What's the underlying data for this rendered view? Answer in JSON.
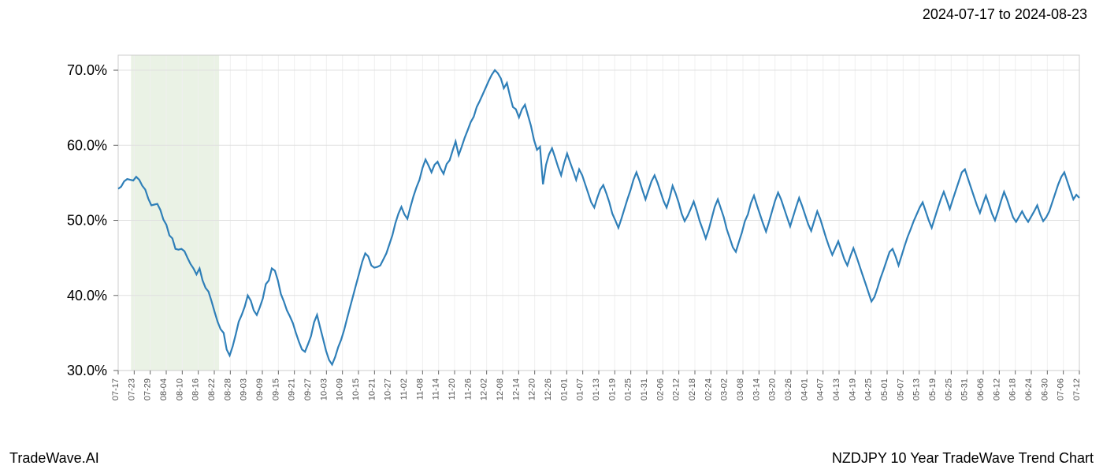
{
  "header": {
    "date_range": "2024-07-17 to 2024-08-23"
  },
  "footer": {
    "brand": "TradeWave.AI",
    "chart_title": "NZDJPY 10 Year TradeWave Trend Chart"
  },
  "chart": {
    "type": "line",
    "background_color": "#ffffff",
    "grid_color": "#e0e0e0",
    "grid_color_minor": "#f0f0f0",
    "line_color": "#2f7fb8",
    "line_width": 2.2,
    "highlight_color": "#d8e8d0",
    "highlight_opacity": 0.55,
    "axis_text_color": "#000000",
    "tick_text_color": "#555555",
    "axis_fontsize": 18,
    "tick_fontsize": 11,
    "ylim": [
      30,
      72
    ],
    "yticks": [
      30,
      40,
      50,
      60,
      70
    ],
    "ytick_labels": [
      "30.0%",
      "40.0%",
      "50.0%",
      "60.0%",
      "70.0%"
    ],
    "highlight_x_range": [
      2,
      11
    ],
    "x_ticks": [
      "07-17",
      "07-23",
      "07-29",
      "08-04",
      "08-10",
      "08-16",
      "08-22",
      "08-28",
      "09-03",
      "09-09",
      "09-15",
      "09-21",
      "09-27",
      "10-03",
      "10-09",
      "10-15",
      "10-21",
      "10-27",
      "11-02",
      "11-08",
      "11-14",
      "11-20",
      "11-26",
      "12-02",
      "12-08",
      "12-14",
      "12-20",
      "12-26",
      "01-01",
      "01-07",
      "01-13",
      "01-19",
      "01-25",
      "01-31",
      "02-06",
      "02-12",
      "02-18",
      "02-24",
      "03-02",
      "03-08",
      "03-14",
      "03-20",
      "03-26",
      "04-01",
      "04-07",
      "04-13",
      "04-19",
      "04-25",
      "05-01",
      "05-07",
      "05-13",
      "05-19",
      "05-25",
      "05-31",
      "06-06",
      "06-12",
      "06-18",
      "06-24",
      "06-30",
      "07-06",
      "07-12"
    ],
    "series": [
      54.2,
      54.5,
      55.2,
      55.5,
      55.4,
      55.3,
      55.8,
      55.4,
      54.6,
      54.1,
      52.9,
      52.0,
      52.1,
      52.2,
      51.4,
      50.1,
      49.4,
      48.0,
      47.6,
      46.2,
      46.1,
      46.2,
      45.9,
      45.0,
      44.2,
      43.6,
      42.8,
      43.6,
      42.0,
      41.0,
      40.5,
      39.2,
      37.8,
      36.5,
      35.5,
      35.0,
      32.8,
      32.0,
      33.2,
      34.8,
      36.5,
      37.4,
      38.5,
      40.0,
      39.3,
      38.0,
      37.4,
      38.4,
      39.6,
      41.5,
      42.0,
      43.6,
      43.3,
      42.0,
      40.2,
      39.2,
      38.0,
      37.2,
      36.3,
      35.0,
      33.8,
      32.8,
      32.5,
      33.5,
      34.6,
      36.4,
      37.4,
      35.8,
      34.2,
      32.6,
      31.4,
      30.8,
      31.8,
      33.1,
      34.1,
      35.4,
      37.0,
      38.5,
      40.0,
      41.5,
      43.0,
      44.5,
      45.6,
      45.2,
      44.0,
      43.7,
      43.8,
      44.0,
      44.8,
      45.6,
      46.8,
      48.0,
      49.6,
      50.9,
      51.8,
      50.8,
      50.2,
      51.8,
      53.2,
      54.4,
      55.4,
      57.0,
      58.1,
      57.3,
      56.4,
      57.4,
      57.8,
      56.9,
      56.2,
      57.5,
      58.0,
      59.3,
      60.5,
      58.7,
      59.8,
      61.0,
      62.0,
      63.1,
      63.8,
      65.1,
      65.9,
      66.8,
      67.7,
      68.6,
      69.4,
      70.0,
      69.6,
      68.9,
      67.6,
      68.3,
      66.6,
      65.1,
      64.8,
      63.7,
      64.8,
      65.4,
      64.0,
      62.6,
      60.7,
      59.4,
      59.8,
      54.8,
      57.4,
      58.8,
      59.6,
      58.4,
      57.1,
      56.0,
      57.6,
      58.9,
      57.7,
      56.6,
      55.4,
      56.8,
      56.0,
      54.8,
      53.6,
      52.4,
      51.7,
      53.0,
      54.1,
      54.7,
      53.6,
      52.4,
      50.9,
      50.0,
      49.0,
      50.2,
      51.5,
      52.8,
      54.0,
      55.4,
      56.4,
      55.3,
      54.0,
      52.8,
      54.0,
      55.2,
      56.0,
      55.0,
      53.8,
      52.6,
      51.7,
      53.0,
      54.6,
      53.6,
      52.4,
      50.9,
      49.9,
      50.6,
      51.5,
      52.5,
      51.3,
      49.9,
      48.8,
      47.6,
      48.8,
      50.3,
      51.8,
      52.8,
      51.6,
      50.4,
      48.8,
      47.6,
      46.4,
      45.8,
      47.1,
      48.4,
      49.9,
      50.8,
      52.3,
      53.3,
      52.0,
      50.8,
      49.6,
      48.5,
      49.8,
      51.2,
      52.6,
      53.7,
      52.8,
      51.6,
      50.4,
      49.2,
      50.5,
      51.8,
      53.0,
      51.9,
      50.7,
      49.5,
      48.6,
      49.9,
      51.2,
      50.2,
      48.9,
      47.6,
      46.4,
      45.4,
      46.3,
      47.2,
      46.0,
      44.8,
      44.0,
      45.2,
      46.3,
      45.2,
      44.0,
      42.8,
      41.6,
      40.4,
      39.2,
      39.8,
      41.0,
      42.3,
      43.4,
      44.6,
      45.8,
      46.2,
      45.2,
      44.0,
      45.3,
      46.6,
      47.8,
      48.8,
      49.9,
      50.8,
      51.7,
      52.4,
      51.2,
      50.0,
      49.0,
      50.3,
      51.6,
      52.8,
      53.8,
      52.7,
      51.5,
      52.8,
      54.0,
      55.2,
      56.4,
      56.8,
      55.6,
      54.4,
      53.2,
      52.0,
      51.0,
      52.2,
      53.3,
      52.1,
      50.9,
      50.0,
      51.2,
      52.6,
      53.8,
      52.8,
      51.6,
      50.4,
      49.8,
      50.5,
      51.2,
      50.4,
      49.8,
      50.5,
      51.2,
      52.0,
      50.8,
      49.9,
      50.4,
      51.2,
      52.4,
      53.6,
      54.8,
      55.8,
      56.4,
      55.2,
      54.0,
      52.8,
      53.4,
      53.0
    ]
  }
}
